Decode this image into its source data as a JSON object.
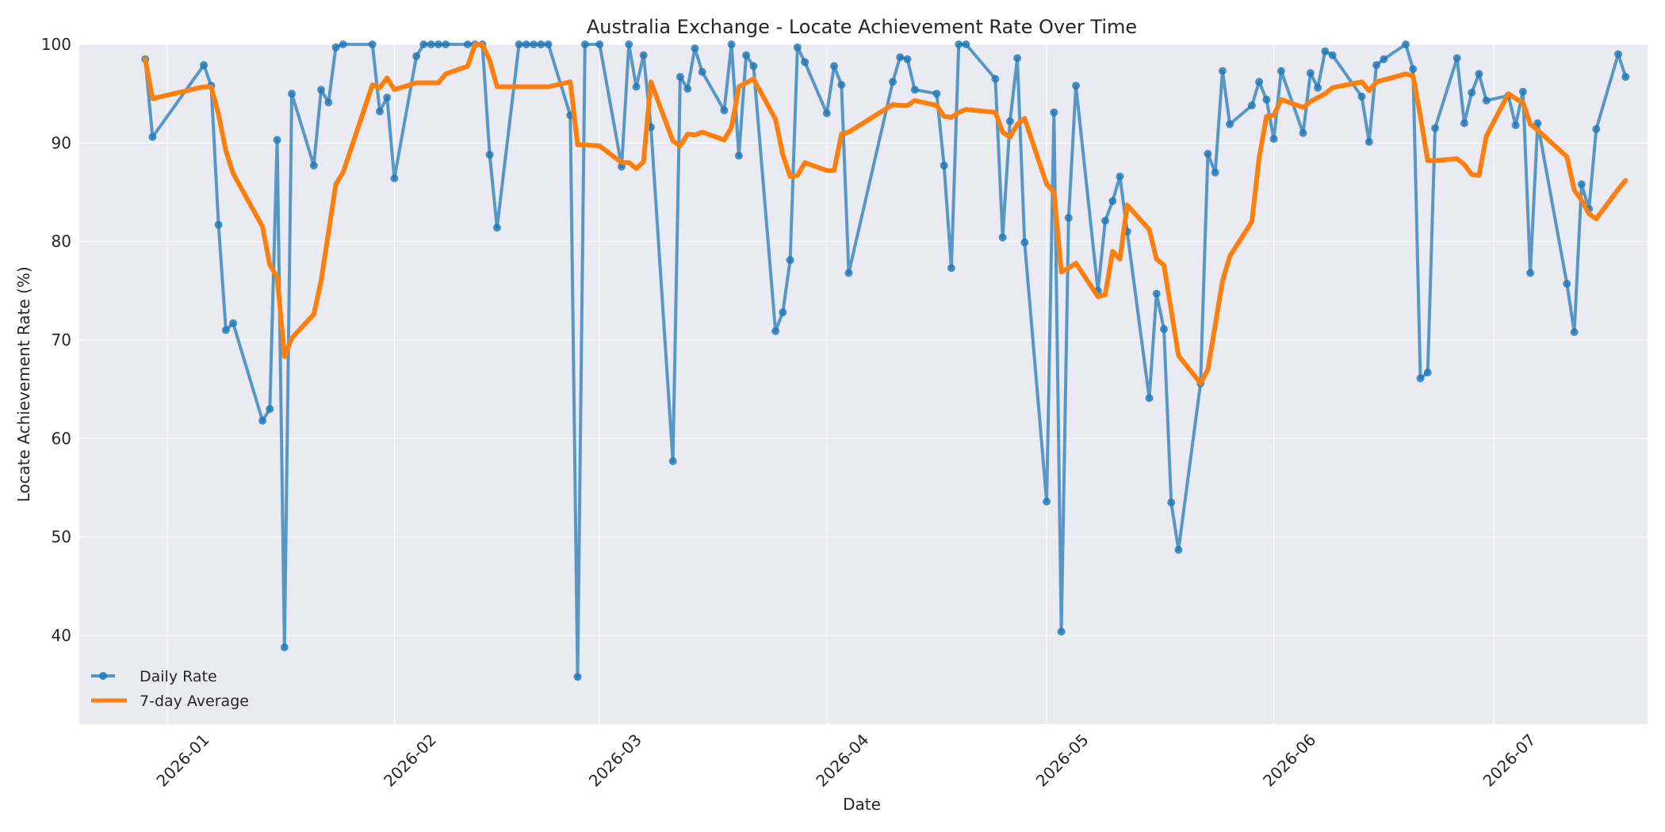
{
  "chart_data": {
    "type": "line",
    "title": "Australia Exchange - Locate Achievement Rate Over Time",
    "xlabel": "Date",
    "ylabel": "Locate Achievement Rate (%)",
    "ylim": [
      31,
      100
    ],
    "yticks": [
      40,
      50,
      60,
      70,
      80,
      90,
      100
    ],
    "xlim": [
      "2025-12-20",
      "2026-07-22"
    ],
    "xticks": [
      {
        "date": "2026-01-01",
        "label": "2026-01"
      },
      {
        "date": "2026-02-01",
        "label": "2026-02"
      },
      {
        "date": "2026-03-01",
        "label": "2026-03"
      },
      {
        "date": "2026-04-01",
        "label": "2026-04"
      },
      {
        "date": "2026-05-01",
        "label": "2026-05"
      },
      {
        "date": "2026-06-01",
        "label": "2026-06"
      },
      {
        "date": "2026-07-01",
        "label": "2026-07"
      }
    ],
    "grid": true,
    "legend_position": "lower-left",
    "colors": {
      "daily": "#1f77b4",
      "average": "#ff7f0e",
      "plot_background": "#eaeaf2"
    },
    "series": [
      {
        "name": "Daily Rate",
        "style": "line-with-markers",
        "points": [
          [
            "2025-12-29",
            98.5
          ],
          [
            "2025-12-30",
            90.6
          ],
          [
            "2026-01-06",
            97.9
          ],
          [
            "2026-01-07",
            95.8
          ],
          [
            "2026-01-08",
            81.7
          ],
          [
            "2026-01-09",
            71.0
          ],
          [
            "2026-01-10",
            71.7
          ],
          [
            "2026-01-14",
            61.8
          ],
          [
            "2026-01-15",
            63.0
          ],
          [
            "2026-01-16",
            90.3
          ],
          [
            "2026-01-17",
            38.8
          ],
          [
            "2026-01-18",
            95.0
          ],
          [
            "2026-01-21",
            87.7
          ],
          [
            "2026-01-22",
            95.4
          ],
          [
            "2026-01-23",
            94.1
          ],
          [
            "2026-01-24",
            99.7
          ],
          [
            "2026-01-25",
            100.0
          ],
          [
            "2026-01-29",
            100.0
          ],
          [
            "2026-01-30",
            93.2
          ],
          [
            "2026-01-31",
            94.6
          ],
          [
            "2026-02-01",
            86.4
          ],
          [
            "2026-02-04",
            98.8
          ],
          [
            "2026-02-05",
            100.0
          ],
          [
            "2026-02-06",
            100.0
          ],
          [
            "2026-02-07",
            100.0
          ],
          [
            "2026-02-08",
            100.0
          ],
          [
            "2026-02-11",
            100.0
          ],
          [
            "2026-02-12",
            100.0
          ],
          [
            "2026-02-13",
            100.0
          ],
          [
            "2026-02-14",
            88.8
          ],
          [
            "2026-02-15",
            81.4
          ],
          [
            "2026-02-18",
            100.0
          ],
          [
            "2026-02-19",
            100.0
          ],
          [
            "2026-02-20",
            100.0
          ],
          [
            "2026-02-21",
            100.0
          ],
          [
            "2026-02-22",
            100.0
          ],
          [
            "2026-02-25",
            92.8
          ],
          [
            "2026-02-26",
            35.8
          ],
          [
            "2026-02-27",
            100.0
          ],
          [
            "2026-03-01",
            100.0
          ],
          [
            "2026-03-04",
            87.6
          ],
          [
            "2026-03-05",
            100.0
          ],
          [
            "2026-03-06",
            95.7
          ],
          [
            "2026-03-07",
            98.9
          ],
          [
            "2026-03-08",
            91.6
          ],
          [
            "2026-03-11",
            57.7
          ],
          [
            "2026-03-12",
            96.7
          ],
          [
            "2026-03-13",
            95.5
          ],
          [
            "2026-03-14",
            99.6
          ],
          [
            "2026-03-15",
            97.2
          ],
          [
            "2026-03-18",
            93.3
          ],
          [
            "2026-03-19",
            100.0
          ],
          [
            "2026-03-20",
            88.7
          ],
          [
            "2026-03-21",
            98.9
          ],
          [
            "2026-03-22",
            97.8
          ],
          [
            "2026-03-25",
            70.9
          ],
          [
            "2026-03-26",
            72.8
          ],
          [
            "2026-03-27",
            78.1
          ],
          [
            "2026-03-28",
            99.7
          ],
          [
            "2026-03-29",
            98.2
          ],
          [
            "2026-04-01",
            93.0
          ],
          [
            "2026-04-02",
            97.8
          ],
          [
            "2026-04-03",
            95.9
          ],
          [
            "2026-04-04",
            76.8
          ],
          [
            "2026-04-10",
            96.2
          ],
          [
            "2026-04-11",
            98.7
          ],
          [
            "2026-04-12",
            98.5
          ],
          [
            "2026-04-13",
            95.4
          ],
          [
            "2026-04-16",
            95.0
          ],
          [
            "2026-04-17",
            87.7
          ],
          [
            "2026-04-18",
            77.3
          ],
          [
            "2026-04-19",
            100.0
          ],
          [
            "2026-04-20",
            100.0
          ],
          [
            "2026-04-24",
            96.5
          ],
          [
            "2026-04-25",
            80.4
          ],
          [
            "2026-04-26",
            92.2
          ],
          [
            "2026-04-27",
            98.6
          ],
          [
            "2026-04-28",
            79.9
          ],
          [
            "2026-05-01",
            53.6
          ],
          [
            "2026-05-02",
            93.1
          ],
          [
            "2026-05-03",
            40.4
          ],
          [
            "2026-05-04",
            82.4
          ],
          [
            "2026-05-05",
            95.8
          ],
          [
            "2026-05-08",
            75.0
          ],
          [
            "2026-05-09",
            82.1
          ],
          [
            "2026-05-10",
            84.1
          ],
          [
            "2026-05-11",
            86.6
          ],
          [
            "2026-05-12",
            81.0
          ],
          [
            "2026-05-15",
            64.1
          ],
          [
            "2026-05-16",
            74.7
          ],
          [
            "2026-05-17",
            71.1
          ],
          [
            "2026-05-18",
            53.5
          ],
          [
            "2026-05-19",
            48.7
          ],
          [
            "2026-05-22",
            65.6
          ],
          [
            "2026-05-23",
            88.9
          ],
          [
            "2026-05-24",
            87.0
          ],
          [
            "2026-05-25",
            97.3
          ],
          [
            "2026-05-26",
            91.9
          ],
          [
            "2026-05-29",
            93.8
          ],
          [
            "2026-05-30",
            96.2
          ],
          [
            "2026-05-31",
            94.4
          ],
          [
            "2026-06-01",
            90.4
          ],
          [
            "2026-06-02",
            97.3
          ],
          [
            "2026-06-05",
            91.0
          ],
          [
            "2026-06-06",
            97.1
          ],
          [
            "2026-06-07",
            95.6
          ],
          [
            "2026-06-08",
            99.3
          ],
          [
            "2026-06-09",
            98.9
          ],
          [
            "2026-06-13",
            94.7
          ],
          [
            "2026-06-14",
            90.1
          ],
          [
            "2026-06-15",
            97.9
          ],
          [
            "2026-06-16",
            98.5
          ],
          [
            "2026-06-19",
            100.0
          ],
          [
            "2026-06-20",
            97.5
          ],
          [
            "2026-06-21",
            66.1
          ],
          [
            "2026-06-22",
            66.7
          ],
          [
            "2026-06-23",
            91.5
          ],
          [
            "2026-06-26",
            98.6
          ],
          [
            "2026-06-27",
            92.0
          ],
          [
            "2026-06-28",
            95.1
          ],
          [
            "2026-06-29",
            97.0
          ],
          [
            "2026-06-30",
            94.3
          ],
          [
            "2026-07-03",
            94.8
          ],
          [
            "2026-07-04",
            91.8
          ],
          [
            "2026-07-05",
            95.2
          ],
          [
            "2026-07-06",
            76.8
          ],
          [
            "2026-07-07",
            92.0
          ],
          [
            "2026-07-11",
            75.7
          ],
          [
            "2026-07-12",
            70.8
          ],
          [
            "2026-07-13",
            85.8
          ],
          [
            "2026-07-14",
            83.3
          ],
          [
            "2026-07-15",
            91.4
          ],
          [
            "2026-07-18",
            99.0
          ],
          [
            "2026-07-19",
            96.7
          ]
        ]
      },
      {
        "name": "7-day Average",
        "style": "thick-line",
        "points": [
          [
            "2025-12-29",
            98.5
          ],
          [
            "2025-12-30",
            94.5
          ],
          [
            "2026-01-06",
            95.7
          ],
          [
            "2026-01-07",
            95.7
          ],
          [
            "2026-01-08",
            92.9
          ],
          [
            "2026-01-09",
            89.2
          ],
          [
            "2026-01-10",
            86.9
          ],
          [
            "2026-01-14",
            81.5
          ],
          [
            "2026-01-15",
            77.6
          ],
          [
            "2026-01-16",
            76.4
          ],
          [
            "2026-01-17",
            68.3
          ],
          [
            "2026-01-18",
            70.2
          ],
          [
            "2026-01-21",
            72.6
          ],
          [
            "2026-01-22",
            76.0
          ],
          [
            "2026-01-23",
            80.9
          ],
          [
            "2026-01-24",
            85.8
          ],
          [
            "2026-01-25",
            87.0
          ],
          [
            "2026-01-29",
            95.9
          ],
          [
            "2026-01-30",
            95.6
          ],
          [
            "2026-01-31",
            96.6
          ],
          [
            "2026-02-01",
            95.4
          ],
          [
            "2026-02-04",
            96.1
          ],
          [
            "2026-02-05",
            96.1
          ],
          [
            "2026-02-06",
            96.1
          ],
          [
            "2026-02-07",
            96.1
          ],
          [
            "2026-02-08",
            97.0
          ],
          [
            "2026-02-11",
            97.8
          ],
          [
            "2026-02-12",
            100.0
          ],
          [
            "2026-02-13",
            100.0
          ],
          [
            "2026-02-14",
            98.4
          ],
          [
            "2026-02-15",
            95.7
          ],
          [
            "2026-02-18",
            95.7
          ],
          [
            "2026-02-19",
            95.7
          ],
          [
            "2026-02-20",
            95.7
          ],
          [
            "2026-02-21",
            95.7
          ],
          [
            "2026-02-22",
            95.7
          ],
          [
            "2026-02-25",
            96.2
          ],
          [
            "2026-02-26",
            89.8
          ],
          [
            "2026-02-27",
            89.8
          ],
          [
            "2026-03-01",
            89.7
          ],
          [
            "2026-03-04",
            88.0
          ],
          [
            "2026-03-05",
            88.0
          ],
          [
            "2026-03-06",
            87.4
          ],
          [
            "2026-03-07",
            88.1
          ],
          [
            "2026-03-08",
            96.2
          ],
          [
            "2026-03-11",
            90.2
          ],
          [
            "2026-03-12",
            89.7
          ],
          [
            "2026-03-13",
            90.9
          ],
          [
            "2026-03-14",
            90.8
          ],
          [
            "2026-03-15",
            91.1
          ],
          [
            "2026-03-18",
            90.3
          ],
          [
            "2026-03-19",
            91.6
          ],
          [
            "2026-03-20",
            95.7
          ],
          [
            "2026-03-21",
            96.1
          ],
          [
            "2026-03-22",
            96.5
          ],
          [
            "2026-03-25",
            92.4
          ],
          [
            "2026-03-26",
            88.8
          ],
          [
            "2026-03-27",
            86.6
          ],
          [
            "2026-03-28",
            86.7
          ],
          [
            "2026-03-29",
            88.0
          ],
          [
            "2026-04-01",
            87.2
          ],
          [
            "2026-04-02",
            87.2
          ],
          [
            "2026-04-03",
            90.9
          ],
          [
            "2026-04-04",
            91.1
          ],
          [
            "2026-04-10",
            93.9
          ],
          [
            "2026-04-11",
            93.8
          ],
          [
            "2026-04-12",
            93.8
          ],
          [
            "2026-04-13",
            94.3
          ],
          [
            "2026-04-16",
            93.8
          ],
          [
            "2026-04-17",
            92.7
          ],
          [
            "2026-04-18",
            92.6
          ],
          [
            "2026-04-19",
            93.1
          ],
          [
            "2026-04-20",
            93.4
          ],
          [
            "2026-04-24",
            93.1
          ],
          [
            "2026-04-25",
            91.1
          ],
          [
            "2026-04-26",
            90.6
          ],
          [
            "2026-04-27",
            91.9
          ],
          [
            "2026-04-28",
            92.5
          ],
          [
            "2026-05-01",
            85.8
          ],
          [
            "2026-05-02",
            85.0
          ],
          [
            "2026-05-03",
            76.9
          ],
          [
            "2026-05-04",
            77.3
          ],
          [
            "2026-05-05",
            77.8
          ],
          [
            "2026-05-08",
            74.4
          ],
          [
            "2026-05-09",
            74.6
          ],
          [
            "2026-05-10",
            79.0
          ],
          [
            "2026-05-11",
            78.2
          ],
          [
            "2026-05-12",
            83.7
          ],
          [
            "2026-05-15",
            81.2
          ],
          [
            "2026-05-16",
            78.2
          ],
          [
            "2026-05-17",
            77.6
          ],
          [
            "2026-05-18",
            73.0
          ],
          [
            "2026-05-19",
            68.4
          ],
          [
            "2026-05-22",
            65.6
          ],
          [
            "2026-05-23",
            67.0
          ],
          [
            "2026-05-24",
            71.5
          ],
          [
            "2026-05-25",
            76.0
          ],
          [
            "2026-05-26",
            78.5
          ],
          [
            "2026-05-29",
            82.0
          ],
          [
            "2026-05-30",
            88.5
          ],
          [
            "2026-05-31",
            92.7
          ],
          [
            "2026-06-01",
            92.8
          ],
          [
            "2026-06-02",
            94.4
          ],
          [
            "2026-06-05",
            93.6
          ],
          [
            "2026-06-06",
            94.2
          ],
          [
            "2026-06-07",
            94.6
          ],
          [
            "2026-06-08",
            95.0
          ],
          [
            "2026-06-09",
            95.6
          ],
          [
            "2026-06-13",
            96.2
          ],
          [
            "2026-06-14",
            95.3
          ],
          [
            "2026-06-15",
            96.2
          ],
          [
            "2026-06-16",
            96.4
          ],
          [
            "2026-06-19",
            97.0
          ],
          [
            "2026-06-20",
            96.8
          ],
          [
            "2026-06-21",
            92.7
          ],
          [
            "2026-06-22",
            88.2
          ],
          [
            "2026-06-23",
            88.2
          ],
          [
            "2026-06-26",
            88.4
          ],
          [
            "2026-06-27",
            87.8
          ],
          [
            "2026-06-28",
            86.8
          ],
          [
            "2026-06-29",
            86.7
          ],
          [
            "2026-06-30",
            90.7
          ],
          [
            "2026-07-03",
            95.0
          ],
          [
            "2026-07-04",
            94.5
          ],
          [
            "2026-07-05",
            94.1
          ],
          [
            "2026-07-06",
            91.9
          ],
          [
            "2026-07-07",
            91.3
          ],
          [
            "2026-07-11",
            88.6
          ],
          [
            "2026-07-12",
            85.2
          ],
          [
            "2026-07-13",
            84.2
          ],
          [
            "2026-07-14",
            82.8
          ],
          [
            "2026-07-15",
            82.3
          ],
          [
            "2026-07-18",
            85.3
          ],
          [
            "2026-07-19",
            86.2
          ]
        ]
      }
    ]
  }
}
